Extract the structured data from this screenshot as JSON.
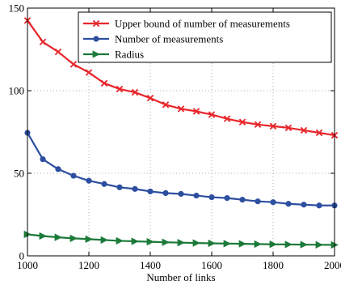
{
  "chart_data": {
    "type": "line",
    "title": "",
    "xlabel": "Number of links",
    "ylabel": "",
    "xlim": [
      1000,
      2000
    ],
    "ylim": [
      0,
      150
    ],
    "xticks": [
      1000,
      1200,
      1400,
      1600,
      1800,
      2000
    ],
    "yticks": [
      0,
      50,
      100,
      150
    ],
    "grid": true,
    "legend_position": "top-right",
    "x": [
      1000,
      1050,
      1100,
      1150,
      1200,
      1250,
      1300,
      1350,
      1400,
      1450,
      1500,
      1550,
      1600,
      1650,
      1700,
      1750,
      1800,
      1850,
      1900,
      1950,
      2000
    ],
    "series": [
      {
        "name": "Upper bound of number of measurements",
        "color": "#e8262b",
        "marker": "x",
        "values": [
          142.5,
          129.5,
          123.5,
          116,
          111,
          104.5,
          101,
          99,
          95.5,
          91.5,
          89,
          87.5,
          85.5,
          83,
          81,
          79.5,
          78.5,
          77.5,
          76,
          74.5,
          73
        ]
      },
      {
        "name": "Number of measurements",
        "color": "#2d4fa0",
        "marker": "circle",
        "values": [
          74.5,
          58.5,
          52.5,
          48.5,
          45.5,
          43.5,
          41.5,
          40.5,
          39,
          38,
          37.5,
          36.5,
          35.5,
          35,
          34,
          33,
          32.5,
          31.5,
          31,
          30.5,
          30.5
        ]
      },
      {
        "name": "Radius",
        "color": "#1c7a3a",
        "marker": "triangle-right",
        "values": [
          13,
          12,
          11.2,
          10.6,
          10.1,
          9.6,
          9.1,
          8.8,
          8.5,
          8.2,
          8,
          7.8,
          7.6,
          7.4,
          7.3,
          7.1,
          7,
          6.9,
          6.8,
          6.7,
          6.6
        ]
      }
    ]
  }
}
